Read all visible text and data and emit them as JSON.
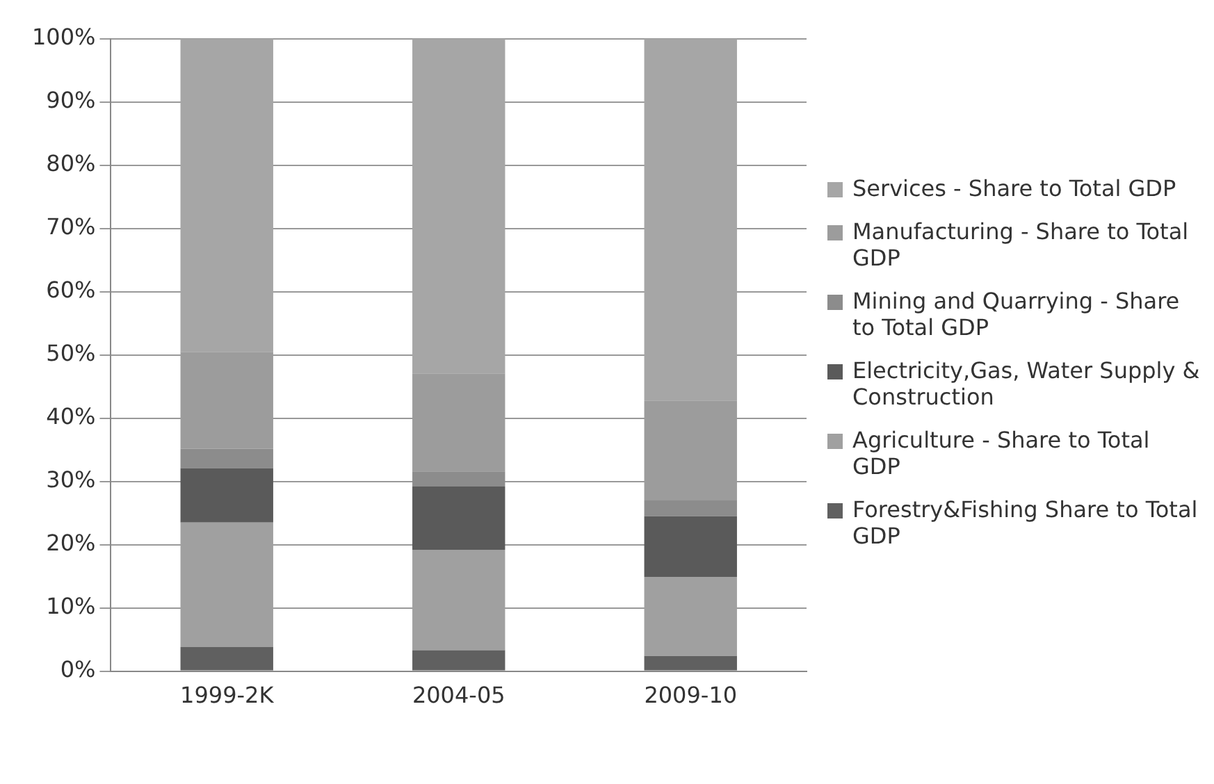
{
  "chart_data": {
    "type": "bar",
    "stacked": true,
    "categories": [
      "1999-2K",
      "2004-05",
      "2009-10"
    ],
    "series": [
      {
        "name": "Forestry&Fishing Share to Total GDP",
        "color": "#606060",
        "values": [
          3.8,
          3.3,
          2.4
        ]
      },
      {
        "name": "Agriculture - Share to Total GDP",
        "color": "#a0a0a0",
        "values": [
          19.7,
          15.9,
          12.5
        ]
      },
      {
        "name": "Electricity,Gas, Water Supply & Construction",
        "color": "#5a5a5a",
        "values": [
          8.6,
          10.0,
          9.6
        ]
      },
      {
        "name": "Mining and Quarrying - Share to Total GDP",
        "color": "#8c8c8c",
        "values": [
          3.1,
          2.4,
          2.5
        ]
      },
      {
        "name": "Manufacturing - Share to Total GDP",
        "color": "#9c9c9c",
        "values": [
          15.3,
          15.5,
          15.8
        ]
      },
      {
        "name": "Services - Share to Total GDP",
        "color": "#a6a6a6",
        "values": [
          49.5,
          52.9,
          57.2
        ]
      }
    ],
    "ylim": [
      0,
      100
    ],
    "yticks": [
      {
        "value": 0,
        "label": "0%"
      },
      {
        "value": 10,
        "label": "10%"
      },
      {
        "value": 20,
        "label": "20%"
      },
      {
        "value": 30,
        "label": "30%"
      },
      {
        "value": 40,
        "label": "40%"
      },
      {
        "value": 50,
        "label": "50%"
      },
      {
        "value": 60,
        "label": "60%"
      },
      {
        "value": 70,
        "label": "70%"
      },
      {
        "value": 80,
        "label": "80%"
      },
      {
        "value": 90,
        "label": "90%"
      },
      {
        "value": 100,
        "label": "100%"
      }
    ],
    "grid": "y",
    "legend": "right"
  }
}
